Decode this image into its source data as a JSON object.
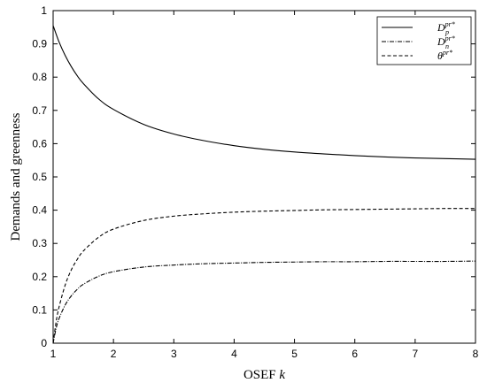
{
  "chart_data": {
    "type": "line",
    "xlabel": "OSEF k",
    "xlabel_parts": {
      "text": "OSEF ",
      "var": "k"
    },
    "ylabel": "Demands and greenness",
    "xlim": [
      1,
      8
    ],
    "ylim": [
      0,
      1
    ],
    "xticks": [
      1,
      2,
      3,
      4,
      5,
      6,
      7,
      8
    ],
    "yticks": [
      0,
      0.1,
      0.2,
      0.3,
      0.4,
      0.5,
      0.6,
      0.7,
      0.8,
      0.9,
      1
    ],
    "grid": false,
    "legend_position": "top-right",
    "series": [
      {
        "name": "D_p^{pr*}",
        "legend": {
          "base": "D",
          "sub": "p",
          "sup": "pr*"
        },
        "line_style": "solid",
        "color": "#000000",
        "x": [
          1.0,
          1.1,
          1.2,
          1.3,
          1.4,
          1.5,
          1.75,
          2.0,
          2.5,
          3.0,
          3.5,
          4.0,
          4.5,
          5.0,
          5.5,
          6.0,
          6.5,
          7.0,
          7.5,
          8.0
        ],
        "y": [
          0.955,
          0.905,
          0.865,
          0.832,
          0.804,
          0.781,
          0.735,
          0.703,
          0.658,
          0.629,
          0.609,
          0.594,
          0.583,
          0.575,
          0.569,
          0.564,
          0.56,
          0.557,
          0.555,
          0.553
        ]
      },
      {
        "name": "D_n^{pr*}",
        "legend": {
          "base": "D",
          "sub": "n",
          "sup": "pr*"
        },
        "line_style": "dashdot",
        "color": "#000000",
        "x": [
          1.0,
          1.05,
          1.1,
          1.2,
          1.3,
          1.4,
          1.5,
          1.75,
          2.0,
          2.5,
          3.0,
          3.5,
          4.0,
          4.5,
          5.0,
          5.5,
          6.0,
          6.5,
          7.0,
          7.5,
          8.0
        ],
        "y": [
          0.0,
          0.045,
          0.075,
          0.115,
          0.142,
          0.162,
          0.177,
          0.201,
          0.215,
          0.229,
          0.235,
          0.239,
          0.241,
          0.243,
          0.244,
          0.245,
          0.245,
          0.246,
          0.246,
          0.246,
          0.247
        ]
      },
      {
        "name": "θ^{pr*}",
        "legend": {
          "base": "θ",
          "sub": "",
          "sup": "pr*"
        },
        "line_style": "dashed",
        "color": "#000000",
        "x": [
          1.0,
          1.05,
          1.1,
          1.2,
          1.3,
          1.4,
          1.5,
          1.75,
          2.0,
          2.5,
          3.0,
          3.5,
          4.0,
          4.5,
          5.0,
          5.5,
          6.0,
          6.5,
          7.0,
          7.5,
          8.0
        ],
        "y": [
          0.0,
          0.065,
          0.11,
          0.175,
          0.22,
          0.252,
          0.277,
          0.318,
          0.343,
          0.369,
          0.382,
          0.389,
          0.394,
          0.397,
          0.399,
          0.401,
          0.402,
          0.403,
          0.404,
          0.405,
          0.405
        ]
      }
    ]
  }
}
